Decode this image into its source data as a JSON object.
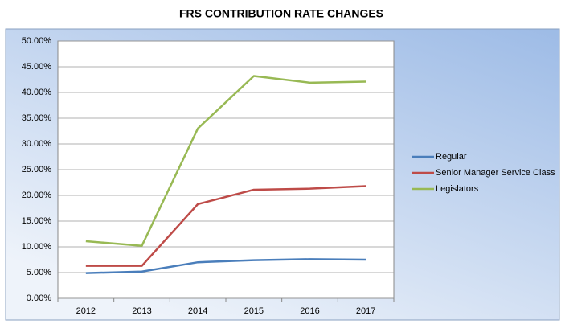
{
  "chart_data": {
    "type": "line",
    "title": "FRS CONTRIBUTION RATE CHANGES",
    "categories": [
      "2012",
      "2013",
      "2014",
      "2015",
      "2016",
      "2017"
    ],
    "series": [
      {
        "name": "Regular",
        "color": "#4a7ebb",
        "values": [
          4.9,
          5.2,
          7.0,
          7.4,
          7.6,
          7.5
        ]
      },
      {
        "name": "Senior Manager Service Class",
        "color": "#be4b48",
        "values": [
          6.3,
          6.3,
          18.3,
          21.1,
          21.3,
          21.8
        ]
      },
      {
        "name": "Legislators",
        "color": "#98b954",
        "values": [
          11.1,
          10.2,
          33.0,
          43.2,
          41.9,
          42.1
        ]
      }
    ],
    "ylim": [
      0,
      50
    ],
    "yticks": [
      {
        "value": 0,
        "label": "0.00%"
      },
      {
        "value": 5,
        "label": "5.00%"
      },
      {
        "value": 10,
        "label": "10.00%"
      },
      {
        "value": 15,
        "label": "15.00%"
      },
      {
        "value": 20,
        "label": "20.00%"
      },
      {
        "value": 25,
        "label": "25.00%"
      },
      {
        "value": 30,
        "label": "30.00%"
      },
      {
        "value": 35,
        "label": "35.00%"
      },
      {
        "value": 40,
        "label": "40.00%"
      },
      {
        "value": 45,
        "label": "45.00%"
      },
      {
        "value": 50,
        "label": "50.00%"
      }
    ],
    "grid": true,
    "legend": "right"
  }
}
